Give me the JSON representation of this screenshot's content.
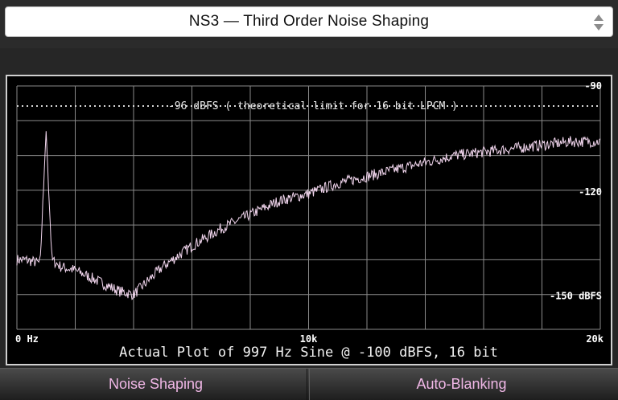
{
  "selector": {
    "label": "NS3 — Third Order Noise Shaping"
  },
  "chart_data": {
    "type": "line",
    "title": "Actual Plot of 997 Hz Sine @ -100 dBFS, 16 bit",
    "annotation": "-96 dBFS ( theoretical limit for 16 bit LPCM )",
    "reference_line_y": -96,
    "x_tick_labels": [
      "0 Hz",
      "10k",
      "20k"
    ],
    "y_tick_labels": [
      "-90",
      "-120",
      "-150 dBFS"
    ],
    "xlim": [
      0,
      20000
    ],
    "ylim": [
      -160,
      -90
    ],
    "grid": true,
    "series": [
      {
        "color": "#f2d6ee",
        "x": [
          0,
          300,
          800,
          1000,
          1200,
          1500,
          2000,
          2500,
          3000,
          3500,
          4000,
          4500,
          5000,
          5500,
          6000,
          7000,
          8000,
          9000,
          10000,
          11000,
          12000,
          13000,
          14000,
          15000,
          16000,
          17000,
          18000,
          19000,
          20000
        ],
        "y": [
          -140,
          -140,
          -141,
          -103,
          -140,
          -142,
          -143,
          -145,
          -147,
          -149,
          -150,
          -146,
          -142,
          -139,
          -136,
          -131,
          -127,
          -123,
          -121,
          -118,
          -116,
          -114,
          -112,
          -110,
          -109,
          -108,
          -107,
          -106,
          -106
        ]
      }
    ]
  },
  "buttons": {
    "noise_shaping": "Noise Shaping",
    "auto_blanking": "Auto-Blanking"
  },
  "colors": {
    "trace": "#f2d6ee",
    "button_text": "#f0b7e6",
    "grid": "#8a8a8a",
    "plot_bg": "#000000"
  }
}
